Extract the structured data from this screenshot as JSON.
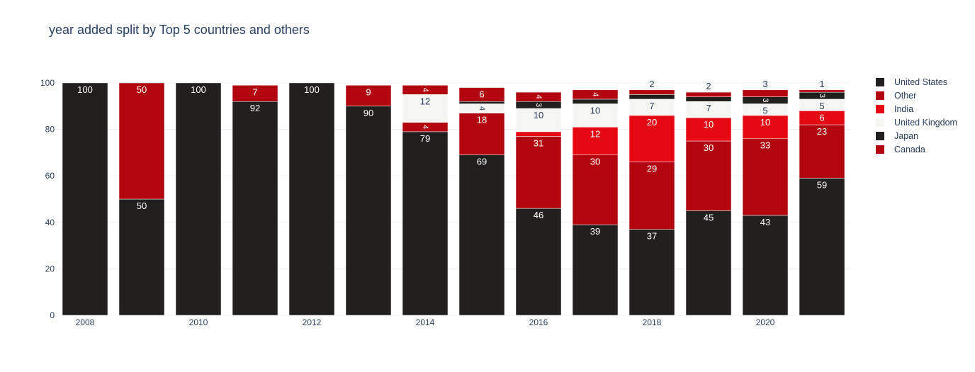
{
  "chart_data": {
    "type": "bar",
    "stacked": true,
    "title": "year added split by Top 5 countries and others",
    "xlabel": "",
    "ylabel": "",
    "ylim": [
      0,
      100
    ],
    "yticks": [
      0,
      20,
      40,
      60,
      80,
      100
    ],
    "xticks": [
      "2008",
      "2010",
      "2012",
      "2014",
      "2016",
      "2018",
      "2020"
    ],
    "grid": true,
    "legend_position": "right",
    "categories": [
      "2008",
      "2009",
      "2010",
      "2011",
      "2012",
      "2013",
      "2014",
      "2015",
      "2016",
      "2017",
      "2018",
      "2019",
      "2020",
      "2021"
    ],
    "series": [
      {
        "name": "United States",
        "color": "#221f1f",
        "values": [
          100,
          50,
          100,
          92,
          100,
          90,
          79,
          69,
          46,
          39,
          37,
          45,
          43,
          59
        ]
      },
      {
        "name": "Other",
        "color": "#b20710",
        "values": [
          0,
          50,
          0,
          7,
          0,
          9,
          4,
          18,
          31,
          30,
          29,
          30,
          33,
          23
        ]
      },
      {
        "name": "India",
        "color": "#e50914",
        "values": [
          0,
          0,
          0,
          0,
          0,
          0,
          0,
          0,
          2,
          12,
          20,
          10,
          10,
          6
        ]
      },
      {
        "name": "United Kingdom",
        "color": "#f5f5f1",
        "values": [
          0,
          0,
          0,
          0,
          0,
          0,
          12,
          4,
          10,
          10,
          7,
          7,
          5,
          5
        ]
      },
      {
        "name": "Japan",
        "color": "#221f1f",
        "values": [
          0,
          0,
          0,
          0,
          0,
          0,
          0,
          1,
          3,
          2,
          2,
          2,
          3,
          3
        ]
      },
      {
        "name": "Canada",
        "color": "#b20710",
        "values": [
          0,
          0,
          0,
          0,
          0,
          0,
          4,
          6,
          4,
          4,
          2,
          2,
          3,
          1
        ]
      }
    ],
    "labels": [
      {
        "x": "2008",
        "series": "United States",
        "text": "100"
      },
      {
        "x": "2009",
        "series": "United States",
        "text": "50"
      },
      {
        "x": "2009",
        "series": "Other",
        "text": "50"
      },
      {
        "x": "2010",
        "series": "United States",
        "text": "100"
      },
      {
        "x": "2011",
        "series": "United States",
        "text": "92"
      },
      {
        "x": "2011",
        "series": "Other",
        "text": "7"
      },
      {
        "x": "2012",
        "series": "United States",
        "text": "100"
      },
      {
        "x": "2013",
        "series": "United States",
        "text": "90"
      },
      {
        "x": "2013",
        "series": "Other",
        "text": "9"
      },
      {
        "x": "2014",
        "series": "United States",
        "text": "79"
      },
      {
        "x": "2014",
        "series": "Other",
        "text": "4"
      },
      {
        "x": "2014",
        "series": "United Kingdom",
        "text": "12"
      },
      {
        "x": "2014",
        "series": "Canada",
        "text": "4"
      },
      {
        "x": "2015",
        "series": "United States",
        "text": "69"
      },
      {
        "x": "2015",
        "series": "Other",
        "text": "18"
      },
      {
        "x": "2015",
        "series": "United Kingdom",
        "text": "4"
      },
      {
        "x": "2015",
        "series": "Canada",
        "text": "6"
      },
      {
        "x": "2016",
        "series": "United States",
        "text": "46"
      },
      {
        "x": "2016",
        "series": "Other",
        "text": "31"
      },
      {
        "x": "2016",
        "series": "United Kingdom",
        "text": "10"
      },
      {
        "x": "2016",
        "series": "Japan",
        "text": "3"
      },
      {
        "x": "2016",
        "series": "Canada",
        "text": "4"
      },
      {
        "x": "2017",
        "series": "United States",
        "text": "39"
      },
      {
        "x": "2017",
        "series": "Other",
        "text": "30"
      },
      {
        "x": "2017",
        "series": "India",
        "text": "12"
      },
      {
        "x": "2017",
        "series": "United Kingdom",
        "text": "10"
      },
      {
        "x": "2017",
        "series": "Canada",
        "text": "4"
      },
      {
        "x": "2018",
        "series": "United States",
        "text": "37"
      },
      {
        "x": "2018",
        "series": "Other",
        "text": "29"
      },
      {
        "x": "2018",
        "series": "India",
        "text": "20"
      },
      {
        "x": "2018",
        "series": "United Kingdom",
        "text": "7"
      },
      {
        "x": "2018",
        "series": "Canada",
        "text": "2"
      },
      {
        "x": "2019",
        "series": "United States",
        "text": "45"
      },
      {
        "x": "2019",
        "series": "Other",
        "text": "30"
      },
      {
        "x": "2019",
        "series": "India",
        "text": "10"
      },
      {
        "x": "2019",
        "series": "United Kingdom",
        "text": "7"
      },
      {
        "x": "2019",
        "series": "Canada",
        "text": "2"
      },
      {
        "x": "2020",
        "series": "United States",
        "text": "43"
      },
      {
        "x": "2020",
        "series": "Other",
        "text": "33"
      },
      {
        "x": "2020",
        "series": "India",
        "text": "10"
      },
      {
        "x": "2020",
        "series": "United Kingdom",
        "text": "5"
      },
      {
        "x": "2020",
        "series": "Japan",
        "text": "3"
      },
      {
        "x": "2020",
        "series": "Canada",
        "text": "3"
      },
      {
        "x": "2021",
        "series": "United States",
        "text": "59"
      },
      {
        "x": "2021",
        "series": "Other",
        "text": "23"
      },
      {
        "x": "2021",
        "series": "India",
        "text": "6"
      },
      {
        "x": "2021",
        "series": "United Kingdom",
        "text": "5"
      },
      {
        "x": "2021",
        "series": "Japan",
        "text": "3"
      },
      {
        "x": "2021",
        "series": "Canada",
        "text": "1"
      }
    ]
  }
}
